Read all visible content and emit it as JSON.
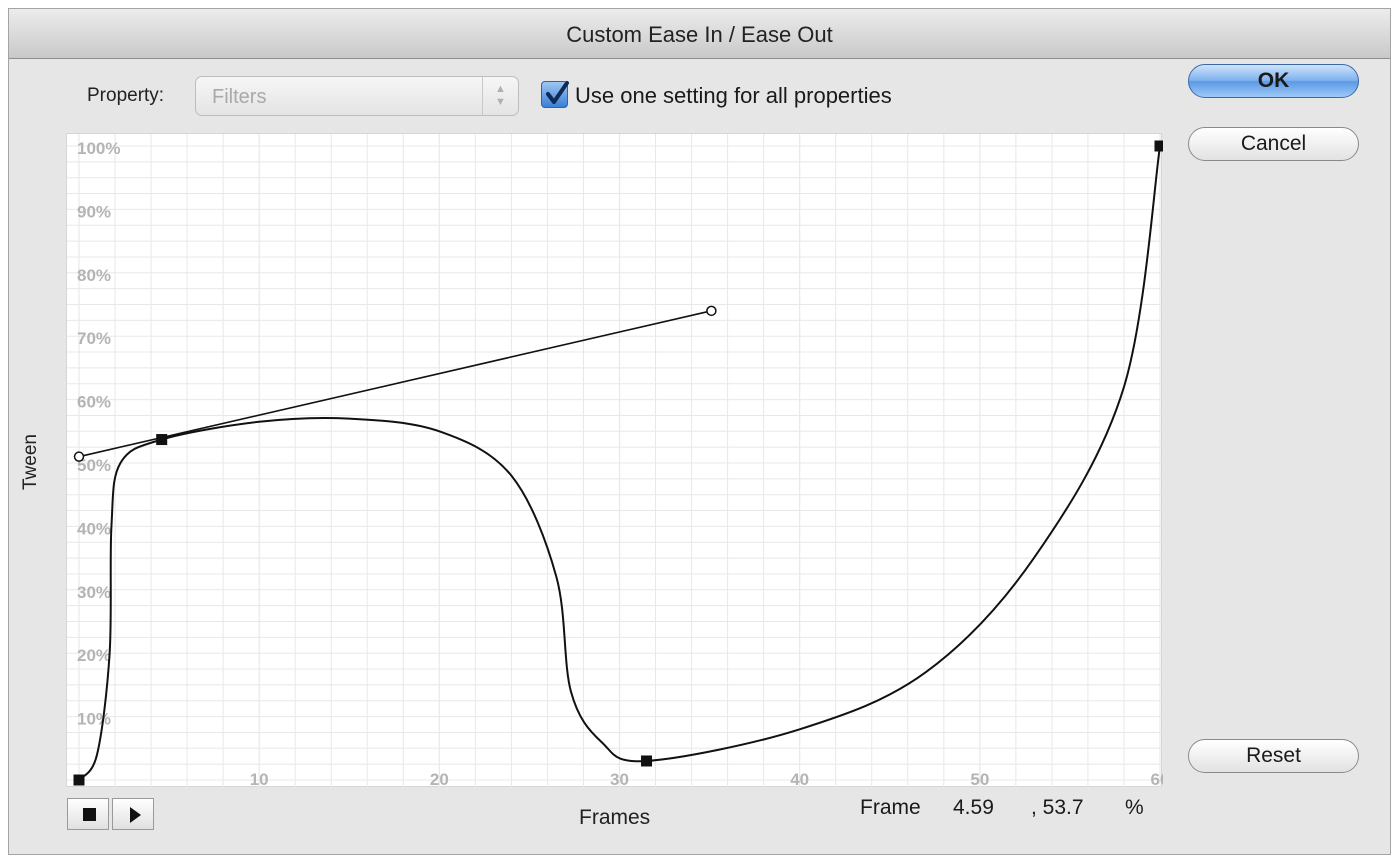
{
  "window": {
    "title": "Custom Ease In / Ease Out"
  },
  "property": {
    "label": "Property:",
    "selected": "Filters",
    "arrows": "▲▼"
  },
  "use_one_setting": {
    "label": "Use one setting for all properties",
    "checked": true
  },
  "buttons": {
    "ok": "OK",
    "cancel": "Cancel",
    "reset": "Reset"
  },
  "graph": {
    "y_axis_label": "Tween",
    "x_axis_label": "Frames",
    "y_ticks": [
      "100%",
      "90%",
      "80%",
      "70%",
      "60%",
      "50%",
      "40%",
      "30%",
      "20%",
      "10%"
    ],
    "x_ticks": [
      "10",
      "20",
      "30",
      "40",
      "50",
      "60"
    ],
    "grid_color": "#e8e8e8",
    "curve_color": "#111111"
  },
  "chart_data": {
    "type": "line",
    "xlim": [
      0,
      60
    ],
    "ylim": [
      0,
      100
    ],
    "grid": true,
    "anchor_points": [
      {
        "frame": 0,
        "tween": 0
      },
      {
        "frame": 4.59,
        "tween": 53.7
      },
      {
        "frame": 31.5,
        "tween": 3
      },
      {
        "frame": 60,
        "tween": 100
      }
    ],
    "selected_anchor_handles": [
      {
        "frame": 0,
        "tween": 51
      },
      {
        "frame": 35.1,
        "tween": 74
      }
    ],
    "curve_samples": [
      {
        "frame": 0,
        "tween": 0
      },
      {
        "frame": 1,
        "tween": 4
      },
      {
        "frame": 1.7,
        "tween": 20
      },
      {
        "frame": 1.8,
        "tween": 40
      },
      {
        "frame": 2.3,
        "tween": 50
      },
      {
        "frame": 4.59,
        "tween": 53.7
      },
      {
        "frame": 10,
        "tween": 56.5
      },
      {
        "frame": 15,
        "tween": 57
      },
      {
        "frame": 20,
        "tween": 55
      },
      {
        "frame": 24,
        "tween": 48
      },
      {
        "frame": 26.5,
        "tween": 32
      },
      {
        "frame": 27.3,
        "tween": 14
      },
      {
        "frame": 29,
        "tween": 6
      },
      {
        "frame": 31.5,
        "tween": 3
      },
      {
        "frame": 40,
        "tween": 8
      },
      {
        "frame": 47,
        "tween": 17
      },
      {
        "frame": 53,
        "tween": 35
      },
      {
        "frame": 58,
        "tween": 62
      },
      {
        "frame": 60,
        "tween": 100
      }
    ]
  },
  "playback": {
    "stop_icon": "stop-square-icon",
    "play_icon": "play-triangle-icon"
  },
  "readout": {
    "label": "Frame",
    "frame_value": "4.59",
    "tween_value": ", 53.7",
    "unit": "%"
  }
}
